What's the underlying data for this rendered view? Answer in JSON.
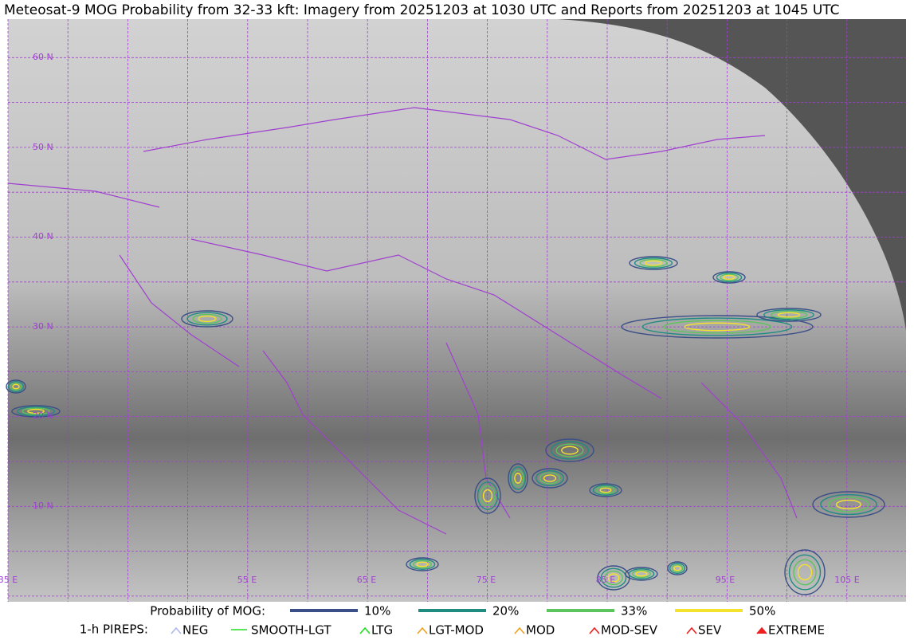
{
  "header": {
    "title": "Meteosat-9 MOG Probability from 32-33 kft: Imagery from 20251203 at 1030 UTC and Reports from 20251203 at 1045 UTC"
  },
  "map": {
    "lat_labels": [
      "60 N",
      "50 N",
      "40 N",
      "30 N",
      "20 N",
      "10 N"
    ],
    "lon_labels": [
      "35 E",
      "55 E",
      "65 E",
      "75 E",
      "85 E",
      "95 E",
      "105 E"
    ]
  },
  "legend": {
    "probability": {
      "label": "Probability of MOG:",
      "items": [
        {
          "label": "10%",
          "color": "#3b4f88"
        },
        {
          "label": "20%",
          "color": "#1f8c82"
        },
        {
          "label": "33%",
          "color": "#5cc45c"
        },
        {
          "label": "50%",
          "color": "#f4e22c"
        }
      ]
    },
    "pireps": {
      "label": "1-h PIREPS:",
      "items": [
        {
          "label": "NEG",
          "color": "#b0b8f0"
        },
        {
          "label": "SMOOTH-LGT",
          "color": "#22dd22"
        },
        {
          "label": "LTG",
          "color": "#22dd22"
        },
        {
          "label": "LGT-MOD",
          "color": "#f0a020"
        },
        {
          "label": "MOD",
          "color": "#f0a020"
        },
        {
          "label": "MOD-SEV",
          "color": "#ee2020"
        },
        {
          "label": "SEV",
          "color": "#ee2020"
        },
        {
          "label": "EXTREME",
          "color": "#ee2020"
        }
      ]
    }
  }
}
